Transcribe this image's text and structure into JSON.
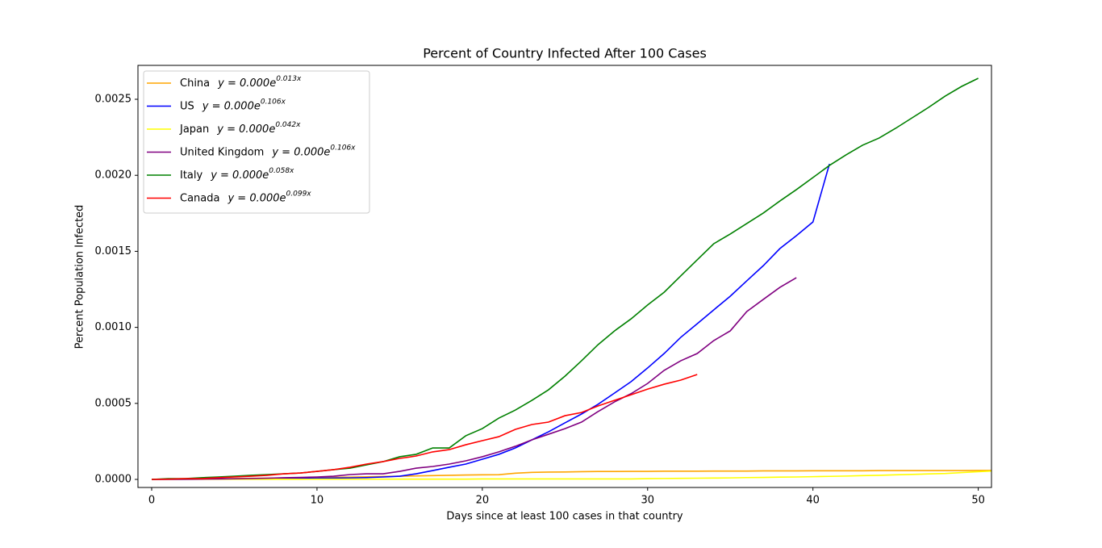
{
  "chart_data": {
    "type": "line",
    "title": "Percent of Country Infected After 100 Cases",
    "x_label": "Days since at least 100 cases in that country",
    "y_label": "Percent Population Infected",
    "xlim": [
      -0.83,
      50.8
    ],
    "ylim": [
      -5.3e-05,
      0.002723
    ],
    "xticks": [
      0,
      10,
      20,
      30,
      40,
      50
    ],
    "yticks": [
      {
        "value": 0,
        "label": "0.0000"
      },
      0.0005,
      {
        "value": 0.001,
        "label": "0.0010"
      },
      0.0015,
      {
        "value": 0.002,
        "label": "0.0020"
      },
      0.0025
    ],
    "legend": "upper left",
    "x": [
      0,
      1,
      2,
      3,
      4,
      5,
      6,
      7,
      8,
      9,
      10,
      11,
      12,
      13,
      14,
      15,
      16,
      17,
      18,
      19,
      20,
      21,
      22,
      23,
      24,
      25,
      26,
      27,
      28,
      29,
      30,
      31,
      32,
      33,
      34,
      35,
      36,
      37,
      38,
      39,
      40,
      41,
      42,
      43,
      44,
      45,
      46,
      47,
      48,
      49,
      50,
      51
    ],
    "series": [
      {
        "name": "China",
        "fit": "y = 0.000e",
        "fit_exponent": "0.013x",
        "color": "#ffa500",
        "values": [
          0,
          1e-06,
          2e-06,
          3e-06,
          4e-06,
          6e-06,
          7e-06,
          8e-06,
          9e-06,
          1e-05,
          1.1e-05,
          1.3e-05,
          1.5e-05,
          1.7e-05,
          1.9e-05,
          2.1e-05,
          2.3e-05,
          2.5e-05,
          2.7e-05,
          2.9e-05,
          3e-05,
          3.1e-05,
          4.1e-05,
          4.6e-05,
          4.8e-05,
          4.9e-05,
          5.1e-05,
          5.2e-05,
          5.2e-05,
          5.3e-05,
          5.3e-05,
          5.4e-05,
          5.4e-05,
          5.4e-05,
          5.5e-05,
          5.5e-05,
          5.5e-05,
          5.6e-05,
          5.6e-05,
          5.6e-05,
          5.7e-05,
          5.7e-05,
          5.7e-05,
          5.7e-05,
          5.8e-05,
          5.8e-05,
          5.8e-05,
          5.8e-05,
          5.8e-05,
          5.8e-05,
          5.9e-05,
          5.9e-05
        ]
      },
      {
        "name": "US",
        "fit": "y = 0.000e",
        "fit_exponent": "0.106x",
        "color": "#0000ff",
        "values": [
          0,
          0,
          1e-06,
          2e-06,
          3e-06,
          3e-06,
          4e-06,
          5e-06,
          6e-06,
          7e-06,
          8e-06,
          9e-06,
          1e-05,
          1.2e-05,
          1.6e-05,
          2.1e-05,
          3.7e-05,
          5.8e-05,
          8e-05,
          0.000101,
          0.000133,
          0.000165,
          0.000207,
          0.00026,
          0.000313,
          0.000372,
          0.00043,
          0.000494,
          0.000568,
          0.000643,
          0.000733,
          0.000828,
          0.000934,
          0.001024,
          0.001115,
          0.001205,
          0.001306,
          0.001406,
          0.001518,
          0.001603,
          0.001693,
          0.002075,
          null,
          null,
          null,
          null,
          null,
          null,
          null,
          null,
          null,
          null
        ]
      },
      {
        "name": "Japan",
        "fit": "y = 0.000e",
        "fit_exponent": "0.042x",
        "color": "#ffff00",
        "values": [
          1e-06,
          1e-06,
          1e-06,
          1e-06,
          1e-06,
          1e-06,
          1e-06,
          1e-06,
          1e-06,
          1e-06,
          2e-06,
          2e-06,
          2e-06,
          2e-06,
          2e-06,
          2e-06,
          2e-06,
          2e-06,
          2e-06,
          2e-06,
          3e-06,
          3e-06,
          3e-06,
          3e-06,
          3e-06,
          3e-06,
          3e-06,
          3e-06,
          3e-06,
          3e-06,
          5e-06,
          6e-06,
          7e-06,
          8e-06,
          9e-06,
          1e-05,
          1.2e-05,
          1.3e-05,
          1.5e-05,
          1.6e-05,
          1.8e-05,
          2e-05,
          2.2e-05,
          2.5e-05,
          2.7e-05,
          3e-05,
          3.3e-05,
          3.6e-05,
          3.9e-05,
          4.5e-05,
          5.1e-05,
          5.6e-05
        ]
      },
      {
        "name": "United Kingdom",
        "fit": "y = 0.000e",
        "fit_exponent": "0.106x",
        "color": "#800080",
        "values": [
          0,
          1e-06,
          1e-06,
          2e-06,
          3e-06,
          4e-06,
          6e-06,
          8e-06,
          1.1e-05,
          1.3e-05,
          1.6e-05,
          2.1e-05,
          3.2e-05,
          3.7e-05,
          3.7e-05,
          5.3e-05,
          7.4e-05,
          8.5e-05,
          0.000101,
          0.000122,
          0.000149,
          0.000181,
          0.000218,
          0.00026,
          0.000297,
          0.000334,
          0.000377,
          0.000446,
          0.00051,
          0.000564,
          0.000631,
          0.000717,
          0.00078,
          0.000828,
          0.000913,
          0.000977,
          0.001104,
          0.001184,
          0.001263,
          0.001327,
          null,
          null,
          null,
          null,
          null,
          null,
          null,
          null,
          null,
          null,
          null,
          null
        ]
      },
      {
        "name": "Italy",
        "fit": "y = 0.000e",
        "fit_exponent": "0.058x",
        "color": "#008000",
        "values": [
          0,
          5e-06,
          5e-06,
          1.1e-05,
          1.6e-05,
          2.1e-05,
          2.7e-05,
          3.2e-05,
          3.7e-05,
          4.2e-05,
          5.3e-05,
          6.4e-05,
          7.4e-05,
          9.6e-05,
          0.000117,
          0.000149,
          0.000165,
          0.000207,
          0.000207,
          0.000287,
          0.000334,
          0.000403,
          0.000456,
          0.00052,
          0.000589,
          0.000679,
          0.00078,
          0.000886,
          0.000977,
          0.001056,
          0.001147,
          0.001231,
          0.001338,
          0.001444,
          0.00155,
          0.001614,
          0.001683,
          0.001752,
          0.001831,
          0.001906,
          0.001985,
          0.002065,
          0.002134,
          0.002198,
          0.002245,
          0.002309,
          0.002378,
          0.002447,
          0.002521,
          0.002585,
          0.002638,
          null
        ]
      },
      {
        "name": "Canada",
        "fit": "y = 0.000e",
        "fit_exponent": "0.099x",
        "color": "#ff0000",
        "values": [
          0,
          2e-06,
          5e-06,
          5e-06,
          1.1e-05,
          1.6e-05,
          2.1e-05,
          2.7e-05,
          3.7e-05,
          4.2e-05,
          5.3e-05,
          6.4e-05,
          8e-05,
          0.000101,
          0.000117,
          0.000138,
          0.000154,
          0.000181,
          0.000196,
          0.000228,
          0.000255,
          0.000281,
          0.000329,
          0.000361,
          0.000377,
          0.000419,
          0.00044,
          0.000483,
          0.00052,
          0.000557,
          0.000594,
          0.000626,
          0.000653,
          0.00069,
          null,
          null,
          null,
          null,
          null,
          null,
          null,
          null,
          null,
          null,
          null,
          null,
          null,
          null,
          null,
          null,
          null,
          null
        ]
      }
    ]
  }
}
